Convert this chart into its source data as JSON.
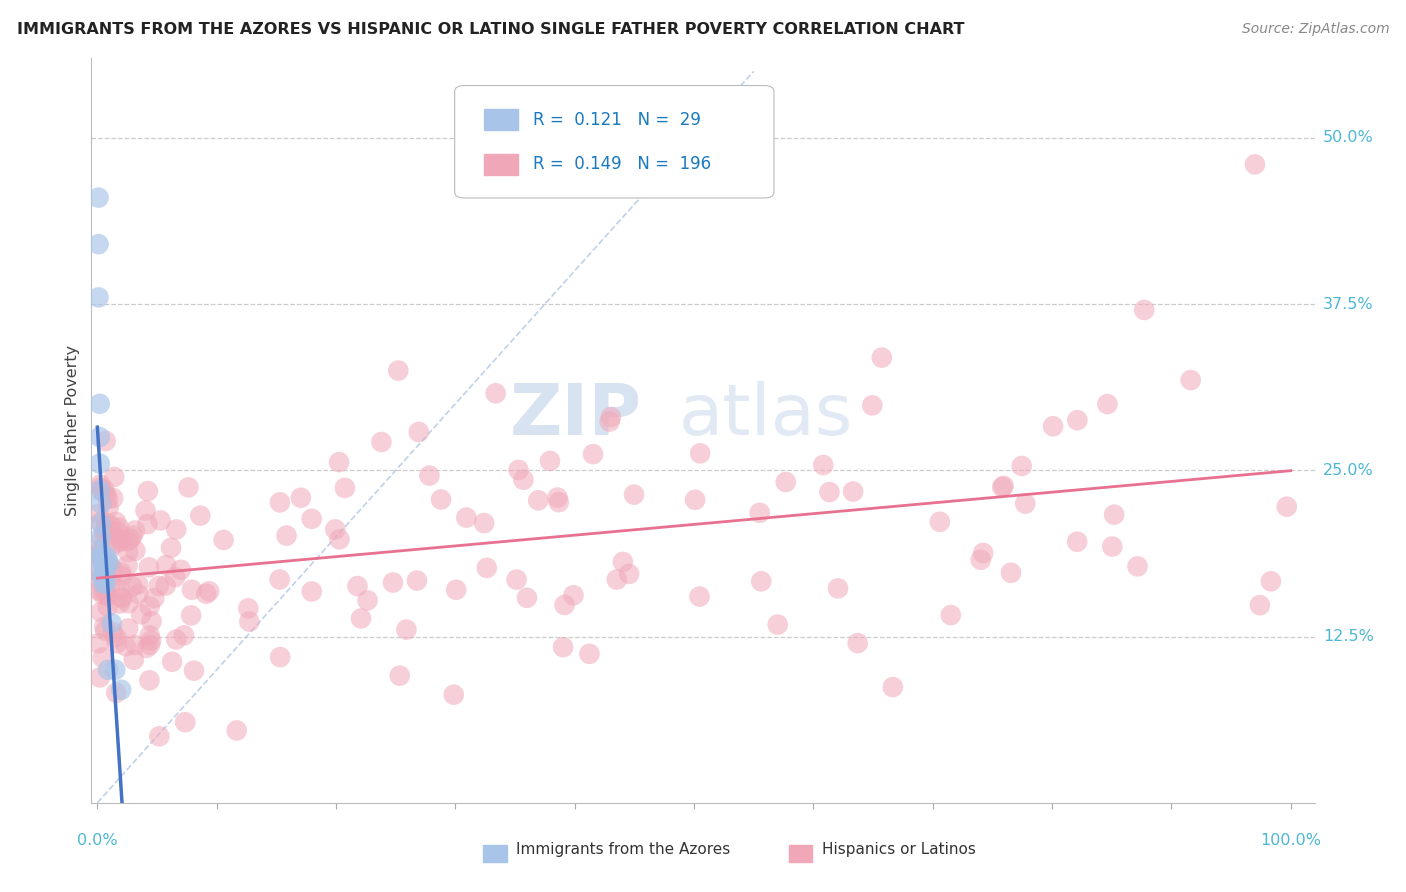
{
  "title": "IMMIGRANTS FROM THE AZORES VS HISPANIC OR LATINO SINGLE FATHER POVERTY CORRELATION CHART",
  "source": "Source: ZipAtlas.com",
  "ylabel": "Single Father Poverty",
  "legend_r_blue": "0.121",
  "legend_n_blue": "29",
  "legend_r_pink": "0.149",
  "legend_n_pink": "196",
  "blue_color": "#a8c4e8",
  "pink_color": "#f0a8b8",
  "blue_line_color": "#4472c4",
  "pink_line_color": "#e87090",
  "diagonal_color": "#b8cce8",
  "watermark_zip": "ZIP",
  "watermark_atlas": "atlas",
  "right_axis_color": "#4db8d4",
  "title_color": "#222222",
  "source_color": "#888888",
  "legend_text_color": "#1a7abf",
  "ytick_labels": [
    "12.5%",
    "25.0%",
    "37.5%",
    "50.0%"
  ],
  "ytick_vals": [
    0.125,
    0.25,
    0.375,
    0.5
  ],
  "ylim_min": 0.0,
  "ylim_max": 0.56,
  "xlim_min": 0.0,
  "xlim_max": 1.0
}
